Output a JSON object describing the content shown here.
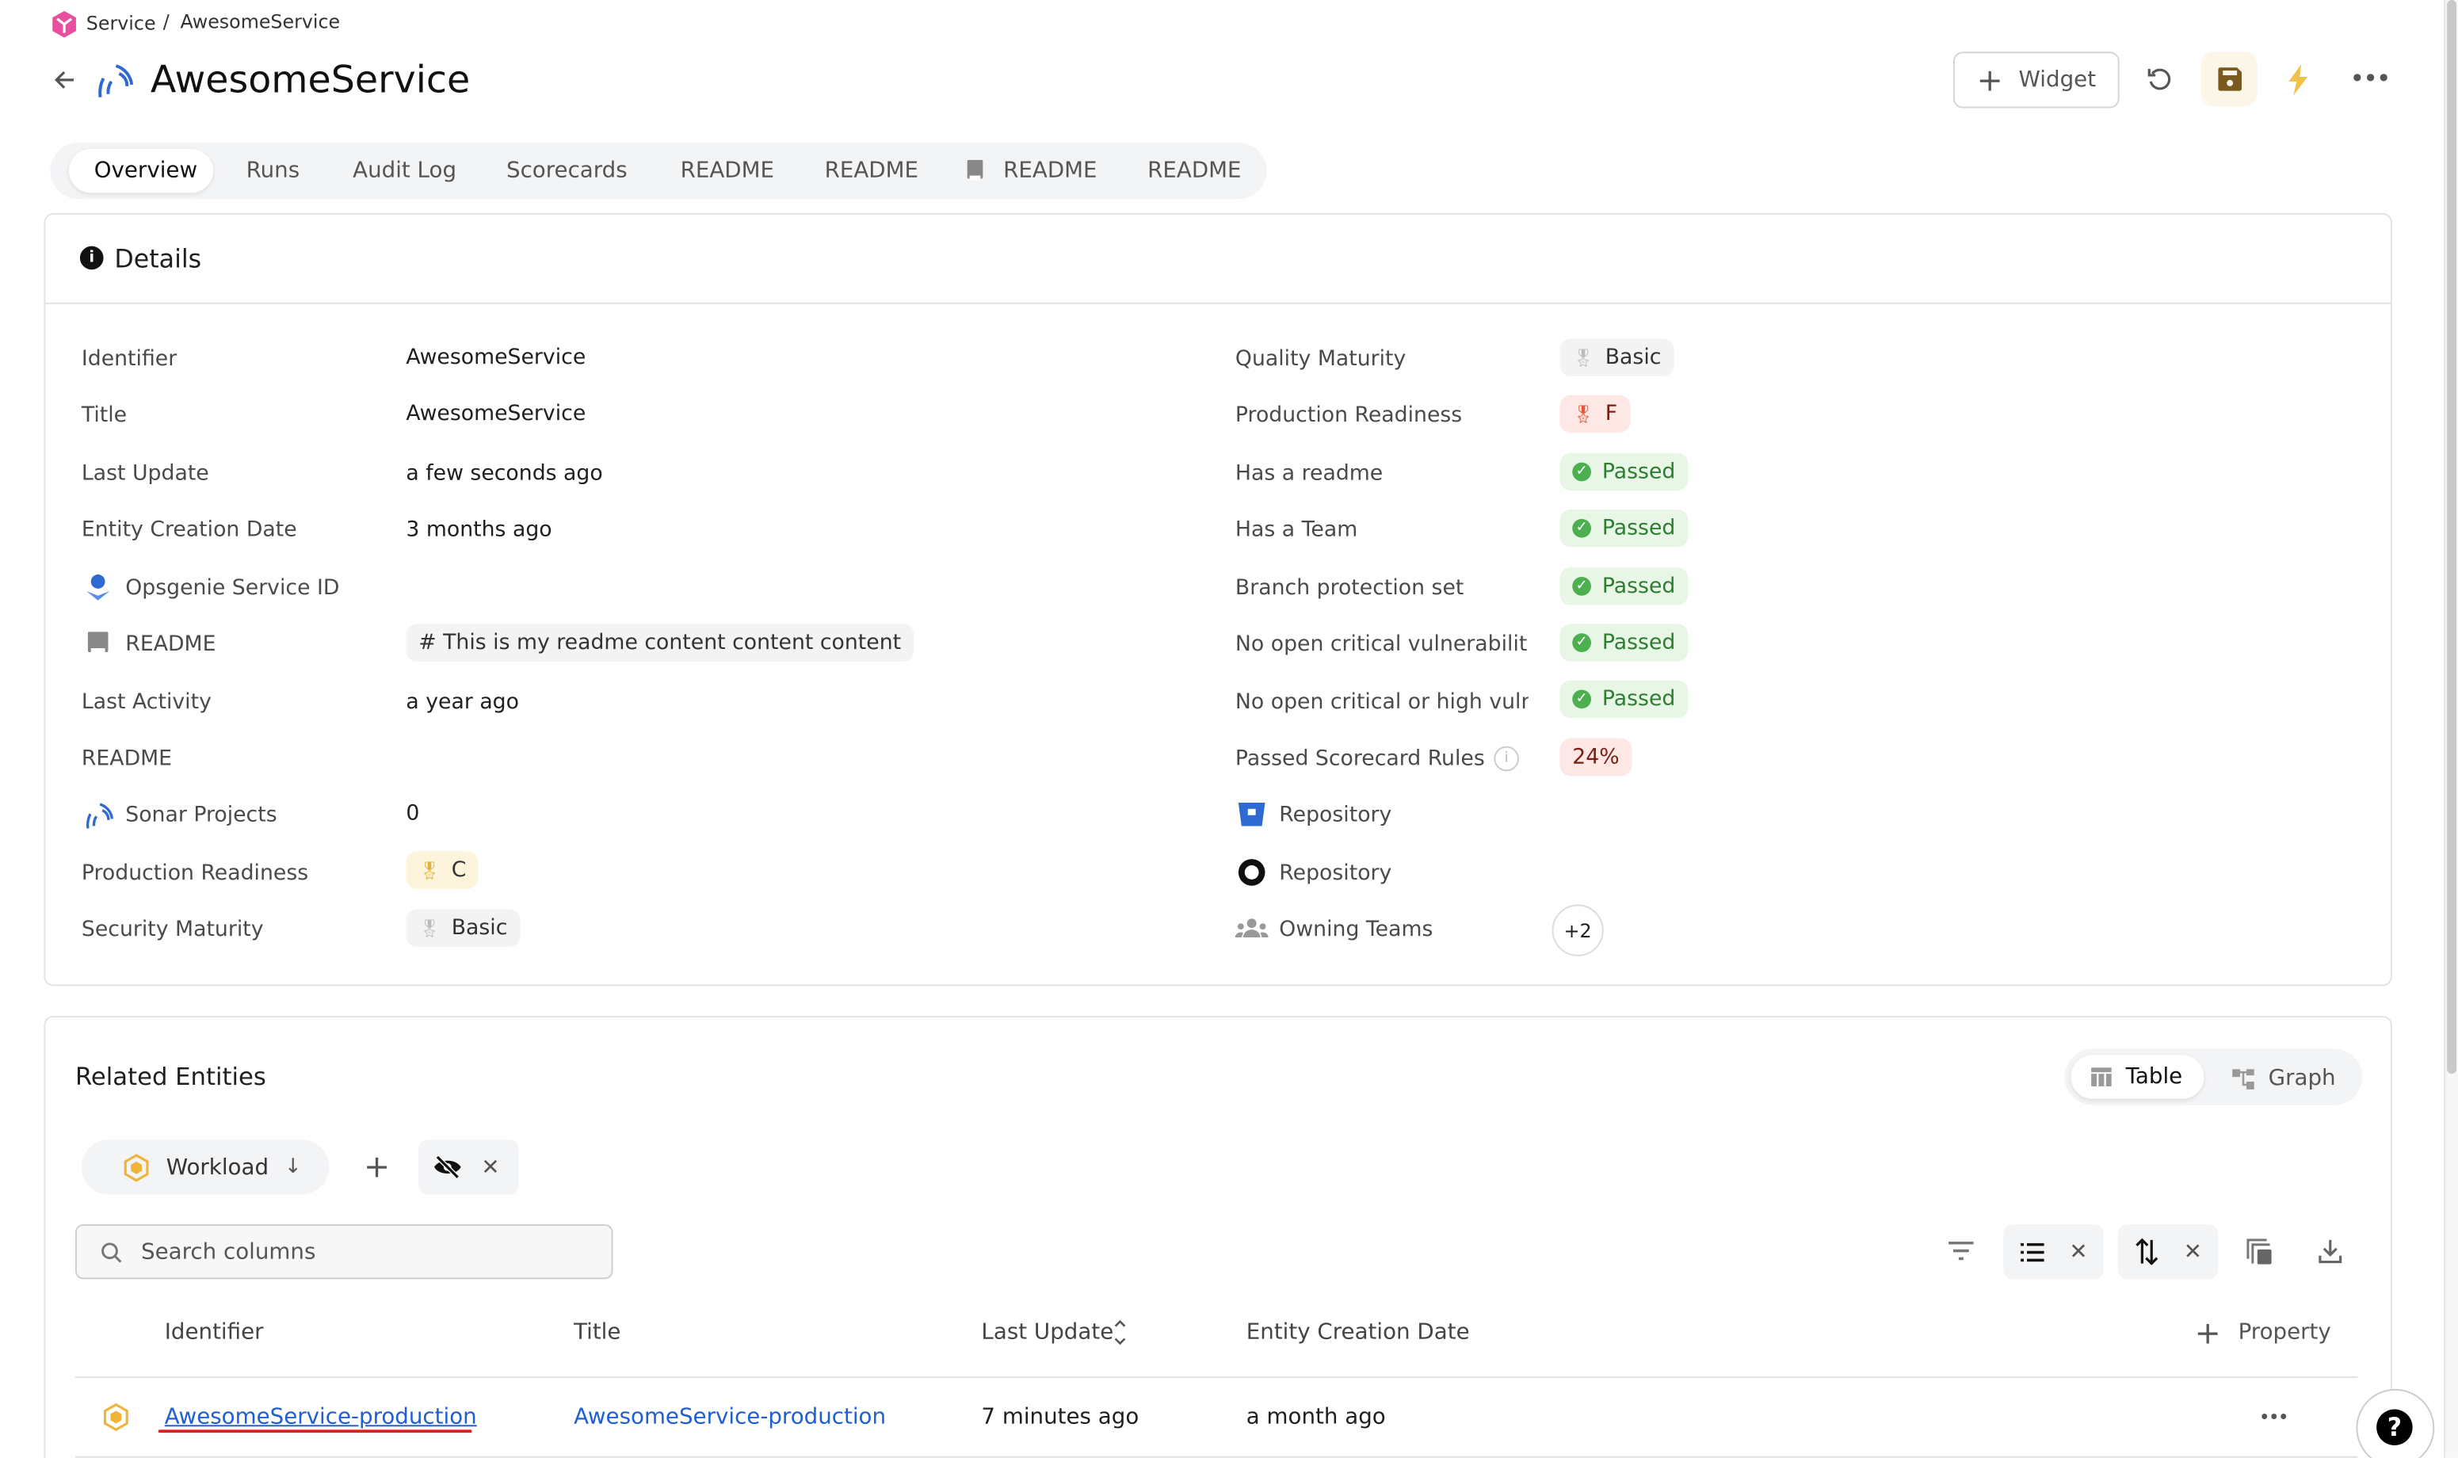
{
  "breadcrumb": {
    "parent": "Service",
    "separator": "/",
    "current": "AwesomeService"
  },
  "header": {
    "title": "AwesomeService",
    "widget_label": "Widget"
  },
  "tabs": [
    {
      "label": "Overview",
      "active": true
    },
    {
      "label": "Runs"
    },
    {
      "label": "Audit Log"
    },
    {
      "label": "Scorecards"
    },
    {
      "label": "README"
    },
    {
      "label": "README"
    },
    {
      "label": "README",
      "icon": "book-icon"
    },
    {
      "label": "README"
    }
  ],
  "details": {
    "title": "Details",
    "left": [
      {
        "label": "Identifier",
        "value": "AwesomeService"
      },
      {
        "label": "Title",
        "value": "AwesomeService"
      },
      {
        "label": "Last Update",
        "value": "a few seconds ago"
      },
      {
        "label": "Entity Creation Date",
        "value": "3 months ago"
      },
      {
        "label": "Opsgenie Service ID",
        "value": "",
        "icon": "opsgenie-icon"
      },
      {
        "label": "README",
        "value": "# This is my readme content content content",
        "icon": "book-icon"
      },
      {
        "label": "Last Activity",
        "value": "a year ago"
      },
      {
        "label": "README",
        "value": ""
      },
      {
        "label": "Sonar Projects",
        "value": "0",
        "icon": "sonar-icon"
      },
      {
        "label": "Production Readiness",
        "value": "C"
      },
      {
        "label": "Security Maturity",
        "value": "Basic"
      }
    ],
    "right": [
      {
        "label": "Quality Maturity",
        "value": "Basic"
      },
      {
        "label": "Production Readiness",
        "value": "F"
      },
      {
        "label": "Has a readme",
        "value": "Passed"
      },
      {
        "label": "Has a Team",
        "value": "Passed"
      },
      {
        "label": "Branch protection set",
        "value": "Passed"
      },
      {
        "label": "No open critical vulnerabilitie",
        "value": "Passed"
      },
      {
        "label": "No open critical or high vulne",
        "value": "Passed"
      },
      {
        "label": "Passed Scorecard Rules",
        "value": "24%"
      },
      {
        "label": "Repository",
        "icon": "bitbucket-icon"
      },
      {
        "label": "Repository",
        "icon": "github-icon"
      },
      {
        "label": "Owning Teams",
        "value": "+2",
        "icon": "team-icon"
      }
    ]
  },
  "related": {
    "title": "Related Entities",
    "view_toggle": [
      {
        "label": "Table",
        "active": true
      },
      {
        "label": "Graph"
      }
    ],
    "filter_chip": "Workload",
    "search_placeholder": "Search columns",
    "columns": [
      "Identifier",
      "Title",
      "Last Update",
      "Entity Creation Date"
    ],
    "add_property": "Property",
    "rows": [
      {
        "identifier": "AwesomeService-production",
        "title": "AwesomeService-production",
        "last_update": "7 minutes ago",
        "created": "a month ago"
      }
    ]
  },
  "colors": {
    "accent_link": "#1f5fd6",
    "passed_bg": "#e8f6e6",
    "save_bg": "#fcf6e8",
    "bolt": "#f0c24a"
  }
}
